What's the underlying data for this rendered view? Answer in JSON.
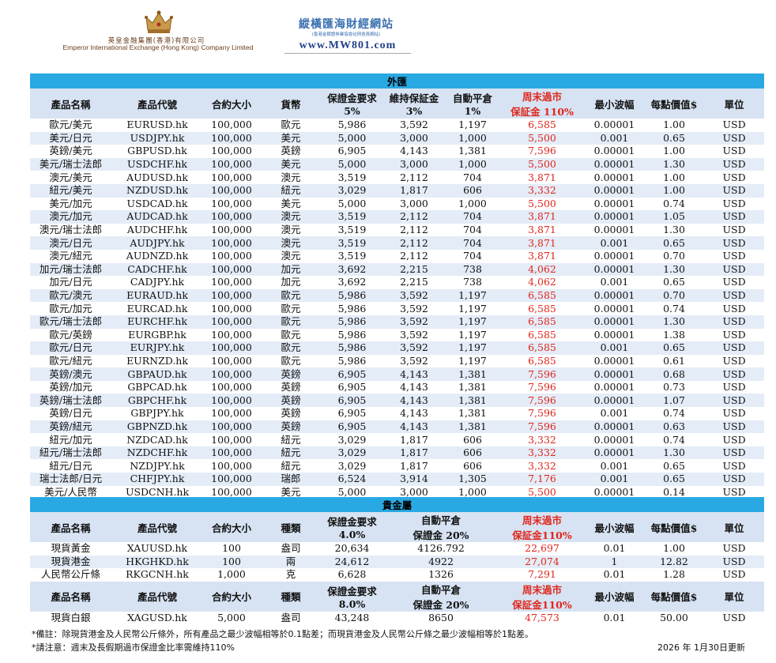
{
  "header": {
    "company_cn": "英皇金融集團(香港)有限公司",
    "company_en": "Emperor International Exchange (Hong Kong) Company Limited",
    "site_title": "縱橫匯海財經網站",
    "site_subtitle": "(香港金銀證券業協會註冊會員網站)",
    "site_url": "www.MW801.com"
  },
  "fx": {
    "section_title": "外匯",
    "headers": {
      "name": "產品名稱",
      "code": "產品代號",
      "size": "合約大小",
      "currency": "貨幣",
      "margin": "保證金要求",
      "margin_pct": "5%",
      "maint": "維持保証金",
      "maint_pct": "3%",
      "liq": "自動平倉",
      "liq_pct": "1%",
      "weekend": "周末過市",
      "weekend_sub": "保証金 110%",
      "tick": "最小波幅",
      "value": "每點價值$",
      "unit": "單位"
    },
    "rows": [
      [
        "歐元/美元",
        "EURUSD.hk",
        "100,000",
        "歐元",
        "5,986",
        "3,592",
        "1,197",
        "6,585",
        "0.00001",
        "1.00",
        "USD"
      ],
      [
        "美元/日元",
        "USDJPY.hk",
        "100,000",
        "美元",
        "5,000",
        "3,000",
        "1,000",
        "5,500",
        "0.001",
        "0.65",
        "USD"
      ],
      [
        "英鎊/美元",
        "GBPUSD.hk",
        "100,000",
        "英鎊",
        "6,905",
        "4,143",
        "1,381",
        "7,596",
        "0.00001",
        "1.00",
        "USD"
      ],
      [
        "美元/瑞士法郎",
        "USDCHF.hk",
        "100,000",
        "美元",
        "5,000",
        "3,000",
        "1,000",
        "5,500",
        "0.00001",
        "1.30",
        "USD"
      ],
      [
        "澳元/美元",
        "AUDUSD.hk",
        "100,000",
        "澳元",
        "3,519",
        "2,112",
        "704",
        "3,871",
        "0.00001",
        "1.00",
        "USD"
      ],
      [
        "紐元/美元",
        "NZDUSD.hk",
        "100,000",
        "紐元",
        "3,029",
        "1,817",
        "606",
        "3,332",
        "0.00001",
        "1.00",
        "USD"
      ],
      [
        "美元/加元",
        "USDCAD.hk",
        "100,000",
        "美元",
        "5,000",
        "3,000",
        "1,000",
        "5,500",
        "0.00001",
        "0.74",
        "USD"
      ],
      [
        "澳元/加元",
        "AUDCAD.hk",
        "100,000",
        "澳元",
        "3,519",
        "2,112",
        "704",
        "3,871",
        "0.00001",
        "1.05",
        "USD"
      ],
      [
        "澳元/瑞士法郎",
        "AUDCHF.hk",
        "100,000",
        "澳元",
        "3,519",
        "2,112",
        "704",
        "3,871",
        "0.00001",
        "1.30",
        "USD"
      ],
      [
        "澳元/日元",
        "AUDJPY.hk",
        "100,000",
        "澳元",
        "3,519",
        "2,112",
        "704",
        "3,871",
        "0.001",
        "0.65",
        "USD"
      ],
      [
        "澳元/紐元",
        "AUDNZD.hk",
        "100,000",
        "澳元",
        "3,519",
        "2,112",
        "704",
        "3,871",
        "0.00001",
        "0.70",
        "USD"
      ],
      [
        "加元/瑞士法郎",
        "CADCHF.hk",
        "100,000",
        "加元",
        "3,692",
        "2,215",
        "738",
        "4,062",
        "0.00001",
        "1.30",
        "USD"
      ],
      [
        "加元/日元",
        "CADJPY.hk",
        "100,000",
        "加元",
        "3,692",
        "2,215",
        "738",
        "4,062",
        "0.001",
        "0.65",
        "USD"
      ],
      [
        "歐元/澳元",
        "EURAUD.hk",
        "100,000",
        "歐元",
        "5,986",
        "3,592",
        "1,197",
        "6,585",
        "0.00001",
        "0.70",
        "USD"
      ],
      [
        "歐元/加元",
        "EURCAD.hk",
        "100,000",
        "歐元",
        "5,986",
        "3,592",
        "1,197",
        "6,585",
        "0.00001",
        "0.74",
        "USD"
      ],
      [
        "歐元/瑞士法郎",
        "EURCHF.hk",
        "100,000",
        "歐元",
        "5,986",
        "3,592",
        "1,197",
        "6,585",
        "0.00001",
        "1.30",
        "USD"
      ],
      [
        "歐元/英鎊",
        "EURGBP.hk",
        "100,000",
        "歐元",
        "5,986",
        "3,592",
        "1,197",
        "6,585",
        "0.00001",
        "1.38",
        "USD"
      ],
      [
        "歐元/日元",
        "EURJPY.hk",
        "100,000",
        "歐元",
        "5,986",
        "3,592",
        "1,197",
        "6,585",
        "0.001",
        "0.65",
        "USD"
      ],
      [
        "歐元/紐元",
        "EURNZD.hk",
        "100,000",
        "歐元",
        "5,986",
        "3,592",
        "1,197",
        "6,585",
        "0.00001",
        "0.61",
        "USD"
      ],
      [
        "英鎊/澳元",
        "GBPAUD.hk",
        "100,000",
        "英鎊",
        "6,905",
        "4,143",
        "1,381",
        "7,596",
        "0.00001",
        "0.68",
        "USD"
      ],
      [
        "英鎊/加元",
        "GBPCAD.hk",
        "100,000",
        "英鎊",
        "6,905",
        "4,143",
        "1,381",
        "7,596",
        "0.00001",
        "0.73",
        "USD"
      ],
      [
        "英鎊/瑞士法郎",
        "GBPCHF.hk",
        "100,000",
        "英鎊",
        "6,905",
        "4,143",
        "1,381",
        "7,596",
        "0.00001",
        "1.07",
        "USD"
      ],
      [
        "英鎊/日元",
        "GBPJPY.hk",
        "100,000",
        "英鎊",
        "6,905",
        "4,143",
        "1,381",
        "7,596",
        "0.001",
        "0.74",
        "USD"
      ],
      [
        "英鎊/紐元",
        "GBPNZD.hk",
        "100,000",
        "英鎊",
        "6,905",
        "4,143",
        "1,381",
        "7,596",
        "0.00001",
        "0.63",
        "USD"
      ],
      [
        "紐元/加元",
        "NZDCAD.hk",
        "100,000",
        "紐元",
        "3,029",
        "1,817",
        "606",
        "3,332",
        "0.00001",
        "0.74",
        "USD"
      ],
      [
        "紐元/瑞士法郎",
        "NZDCHF.hk",
        "100,000",
        "紐元",
        "3,029",
        "1,817",
        "606",
        "3,332",
        "0.00001",
        "1.30",
        "USD"
      ],
      [
        "紐元/日元",
        "NZDJPY.hk",
        "100,000",
        "紐元",
        "3,029",
        "1,817",
        "606",
        "3,332",
        "0.001",
        "0.65",
        "USD"
      ],
      [
        "瑞士法郎/日元",
        "CHFJPY.hk",
        "100,000",
        "瑞郎",
        "6,524",
        "3,914",
        "1,305",
        "7,176",
        "0.001",
        "0.65",
        "USD"
      ],
      [
        "美元/人民幣",
        "USDCNH.hk",
        "100,000",
        "美元",
        "5,000",
        "3,000",
        "1,000",
        "5,500",
        "0.00001",
        "0.14",
        "USD"
      ]
    ]
  },
  "pm": {
    "section_title": "貴金屬",
    "headers1": {
      "name": "產品名稱",
      "code": "產品代號",
      "size": "合約大小",
      "type": "種類",
      "margin": "保證金要求",
      "margin_pct": "4.0%",
      "liq": "自動平倉",
      "liq_pct": "保證金 20%",
      "weekend": "周末過市",
      "weekend_sub": "保証金110%",
      "tick": "最小波幅",
      "value": "每點價值$",
      "unit": "單位"
    },
    "rows1": [
      [
        "現貨黃金",
        "XAUUSD.hk",
        "100",
        "盎司",
        "20,634",
        "4126.792",
        "22,697",
        "0.01",
        "1.00",
        "USD"
      ],
      [
        "現貨港金",
        "HKGHKD.hk",
        "100",
        "兩",
        "24,612",
        "4922",
        "27,074",
        "1",
        "12.82",
        "USD"
      ],
      [
        "人民幣公斤條",
        "RKGCNH.hk",
        "1,000",
        "克",
        "6,628",
        "1326",
        "7,291",
        "0.01",
        "1.28",
        "USD"
      ]
    ],
    "headers2": {
      "name": "產品名稱",
      "code": "產品代號",
      "size": "合約大小",
      "type": "種類",
      "margin": "保證金要求",
      "margin_pct": "8.0%",
      "liq": "自動平倉",
      "liq_pct": "保證金 20%",
      "weekend": "周末過市",
      "weekend_sub": "保証金110%",
      "tick": "最小波幅",
      "value": "每點價值$",
      "unit": "單位"
    },
    "rows2": [
      [
        "現貨白銀",
        "XAGUSD.hk",
        "5,000",
        "盎司",
        "43,248",
        "8650",
        "47,573",
        "0.01",
        "50.00",
        "USD"
      ]
    ]
  },
  "notes": {
    "note1": "*備註：除現貨港金及人民幣公斤條外，所有產品之最少波幅相等於0.1點差；而現貨港金及人民幣公斤條之最少波幅相等於1點差。",
    "note2": "*請注意：週末及長假期過市保證金比率需維持110%",
    "updated": "2026 年 1月30日更新"
  },
  "colors": {
    "section": "#29a9e3",
    "header_bg": "#d7e3f3",
    "alt_row": "#e4ecf7",
    "red": "#e0261c"
  }
}
